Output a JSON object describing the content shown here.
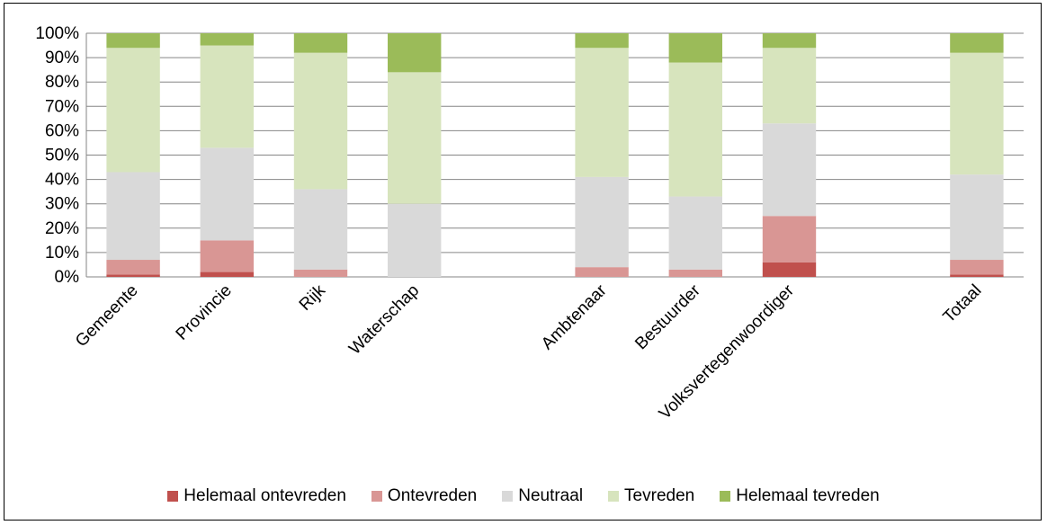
{
  "chart_data": {
    "type": "bar",
    "stacked": true,
    "categories": [
      "Gemeente",
      "Provincie",
      "Rijk",
      "Waterschap",
      "",
      "Ambtenaar",
      "Bestuurder",
      "Volksvertegenwoordiger",
      "",
      "Totaal"
    ],
    "series": [
      {
        "name": "Helemaal ontevreden",
        "color": "#c0504d",
        "values": [
          1,
          2,
          0,
          0,
          null,
          0,
          0,
          6,
          null,
          1
        ]
      },
      {
        "name": "Ontevreden",
        "color": "#d99694",
        "values": [
          6,
          13,
          3,
          0,
          null,
          4,
          3,
          19,
          null,
          6
        ]
      },
      {
        "name": "Neutraal",
        "color": "#d9d9d9",
        "values": [
          36,
          38,
          33,
          30,
          null,
          37,
          30,
          38,
          null,
          35
        ]
      },
      {
        "name": "Tevreden",
        "color": "#d7e4bd",
        "values": [
          51,
          42,
          56,
          54,
          null,
          53,
          55,
          31,
          null,
          50
        ]
      },
      {
        "name": "Helemaal tevreden",
        "color": "#9bbb59",
        "values": [
          6,
          5,
          8,
          16,
          null,
          6,
          12,
          6,
          null,
          8
        ]
      }
    ],
    "ylim": [
      0,
      100
    ],
    "yticks": [
      "0%",
      "10%",
      "20%",
      "30%",
      "40%",
      "50%",
      "60%",
      "70%",
      "80%",
      "90%",
      "100%"
    ],
    "grid": true,
    "legend_position": "bottom"
  }
}
